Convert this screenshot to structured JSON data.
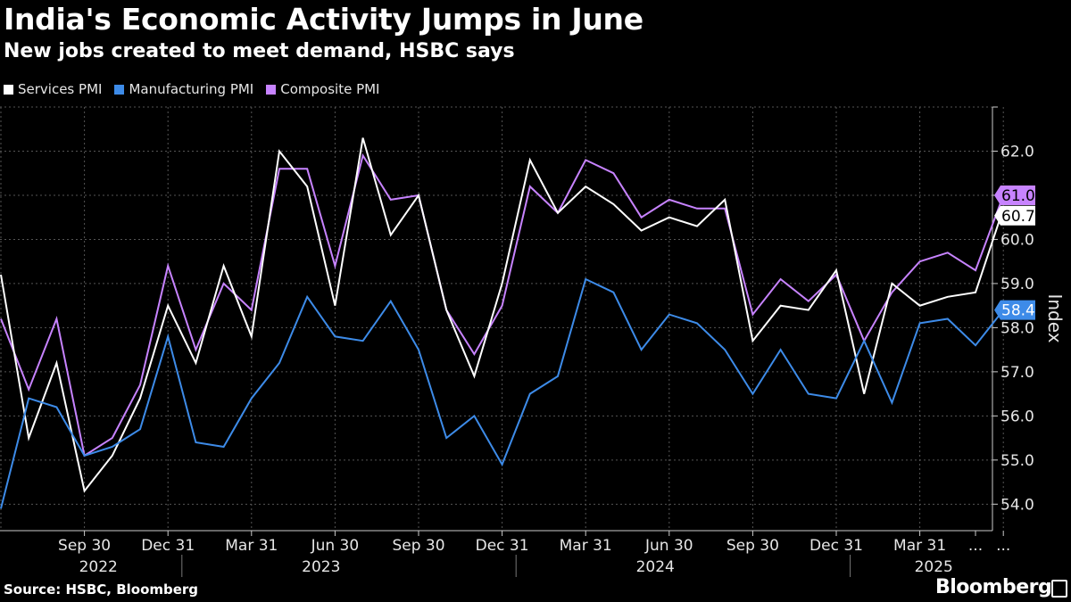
{
  "title": "India's Economic Activity Jumps in June",
  "subtitle": "New jobs created to meet demand, HSBC says",
  "legend": [
    {
      "label": "Services PMI",
      "color": "#ffffff"
    },
    {
      "label": "Manufacturing PMI",
      "color": "#3d8be8"
    },
    {
      "label": "Composite PMI",
      "color": "#c783ff"
    }
  ],
  "source": "Source: HSBC, Bloomberg",
  "brand": "Bloomberg",
  "chart_data": {
    "type": "line",
    "ylabel": "Index",
    "ylim": [
      53.4,
      63.0
    ],
    "yticks": [
      54.0,
      55.0,
      56.0,
      57.0,
      58.0,
      59.0,
      60.0,
      61.0,
      62.0
    ],
    "grid": true,
    "x": [
      "Jun 2022",
      "Jul 2022",
      "Aug 2022",
      "Sep 2022",
      "Oct 2022",
      "Nov 2022",
      "Dec 2022",
      "Jan 2023",
      "Feb 2023",
      "Mar 2023",
      "Apr 2023",
      "May 2023",
      "Jun 2023",
      "Jul 2023",
      "Aug 2023",
      "Sep 2023",
      "Oct 2023",
      "Nov 2023",
      "Dec 2023",
      "Jan 2024",
      "Feb 2024",
      "Mar 2024",
      "Apr 2024",
      "May 2024",
      "Jun 2024",
      "Jul 2024",
      "Aug 2024",
      "Sep 2024",
      "Oct 2024",
      "Nov 2024",
      "Dec 2024",
      "Jan 2025",
      "Feb 2025",
      "Mar 2025",
      "Apr 2025",
      "May 2025",
      "Jun 2025"
    ],
    "xtick_labels": [
      {
        "index": 3,
        "label": "Sep 30"
      },
      {
        "index": 6,
        "label": "Dec 31"
      },
      {
        "index": 9,
        "label": "Mar 31"
      },
      {
        "index": 12,
        "label": "Jun 30"
      },
      {
        "index": 15,
        "label": "Sep 30"
      },
      {
        "index": 18,
        "label": "Dec 31"
      },
      {
        "index": 21,
        "label": "Mar 31"
      },
      {
        "index": 24,
        "label": "Jun 30"
      },
      {
        "index": 27,
        "label": "Sep 30"
      },
      {
        "index": 30,
        "label": "Dec 31"
      },
      {
        "index": 33,
        "label": "Mar 31"
      },
      {
        "index": 35,
        "label": "..."
      },
      {
        "index": 36,
        "label": "..."
      }
    ],
    "year_labels": [
      {
        "label": "2022",
        "center_index": 3.5
      },
      {
        "label": "2023",
        "center_index": 11.5
      },
      {
        "label": "2024",
        "center_index": 23.5
      },
      {
        "label": "2025",
        "center_index": 33.5
      }
    ],
    "year_dividers": [
      6.5,
      18.5,
      30.5
    ],
    "series": [
      {
        "name": "Services PMI",
        "color": "#ffffff",
        "values": [
          59.2,
          55.5,
          57.2,
          54.3,
          55.1,
          56.4,
          58.5,
          57.2,
          59.4,
          57.8,
          62.0,
          61.2,
          58.5,
          62.3,
          60.1,
          61.0,
          58.4,
          56.9,
          59.0,
          61.8,
          60.6,
          61.2,
          60.8,
          60.2,
          60.5,
          60.3,
          60.9,
          57.7,
          58.5,
          58.4,
          59.3,
          56.5,
          59.0,
          58.5,
          58.7,
          58.8,
          60.7
        ],
        "end_label": "60.7"
      },
      {
        "name": "Manufacturing PMI",
        "color": "#3d8be8",
        "values": [
          53.9,
          56.4,
          56.2,
          55.1,
          55.3,
          55.7,
          57.8,
          55.4,
          55.3,
          56.4,
          57.2,
          58.7,
          57.8,
          57.7,
          58.6,
          57.5,
          55.5,
          56.0,
          54.9,
          56.5,
          56.9,
          59.1,
          58.8,
          57.5,
          58.3,
          58.1,
          57.5,
          56.5,
          57.5,
          56.5,
          56.4,
          57.7,
          56.3,
          58.1,
          58.2,
          57.6,
          58.4
        ],
        "end_label": "58.4"
      },
      {
        "name": "Composite PMI",
        "color": "#c783ff",
        "values": [
          58.2,
          56.6,
          58.2,
          55.1,
          55.5,
          56.7,
          59.4,
          57.5,
          59.0,
          58.4,
          61.6,
          61.6,
          59.4,
          61.9,
          60.9,
          61.0,
          58.4,
          57.4,
          58.5,
          61.2,
          60.6,
          61.8,
          61.5,
          60.5,
          60.9,
          60.7,
          60.7,
          58.3,
          59.1,
          58.6,
          59.2,
          57.7,
          58.8,
          59.5,
          59.7,
          59.3,
          61.0
        ],
        "end_label": "61.0"
      }
    ]
  }
}
